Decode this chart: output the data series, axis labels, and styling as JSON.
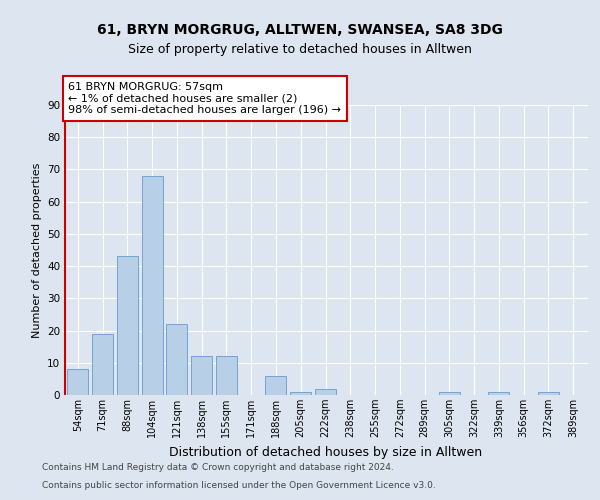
{
  "title1": "61, BRYN MORGRUG, ALLTWEN, SWANSEA, SA8 3DG",
  "title2": "Size of property relative to detached houses in Alltwen",
  "xlabel": "Distribution of detached houses by size in Alltwen",
  "ylabel": "Number of detached properties",
  "categories": [
    "54sqm",
    "71sqm",
    "88sqm",
    "104sqm",
    "121sqm",
    "138sqm",
    "155sqm",
    "171sqm",
    "188sqm",
    "205sqm",
    "222sqm",
    "238sqm",
    "255sqm",
    "272sqm",
    "289sqm",
    "305sqm",
    "322sqm",
    "339sqm",
    "356sqm",
    "372sqm",
    "389sqm"
  ],
  "values": [
    8,
    19,
    43,
    68,
    22,
    12,
    12,
    0,
    6,
    1,
    2,
    0,
    0,
    0,
    0,
    1,
    0,
    1,
    0,
    1,
    0
  ],
  "bar_color": "#b8cfe8",
  "bar_edge_color": "#6699cc",
  "highlight_color": "#cc0000",
  "annotation_text": "61 BRYN MORGRUG: 57sqm\n← 1% of detached houses are smaller (2)\n98% of semi-detached houses are larger (196) →",
  "annotation_box_color": "#ffffff",
  "annotation_box_edge_color": "#cc0000",
  "ylim": [
    0,
    90
  ],
  "yticks": [
    0,
    10,
    20,
    30,
    40,
    50,
    60,
    70,
    80,
    90
  ],
  "bg_color": "#dde5f0",
  "plot_bg_color": "#dde5f0",
  "grid_color": "#ffffff",
  "footer_line1": "Contains HM Land Registry data © Crown copyright and database right 2024.",
  "footer_line2": "Contains public sector information licensed under the Open Government Licence v3.0.",
  "title_fontsize": 10,
  "subtitle_fontsize": 9,
  "tick_fontsize": 7,
  "ylabel_fontsize": 8,
  "xlabel_fontsize": 9,
  "annotation_fontsize": 8,
  "footer_fontsize": 6.5
}
